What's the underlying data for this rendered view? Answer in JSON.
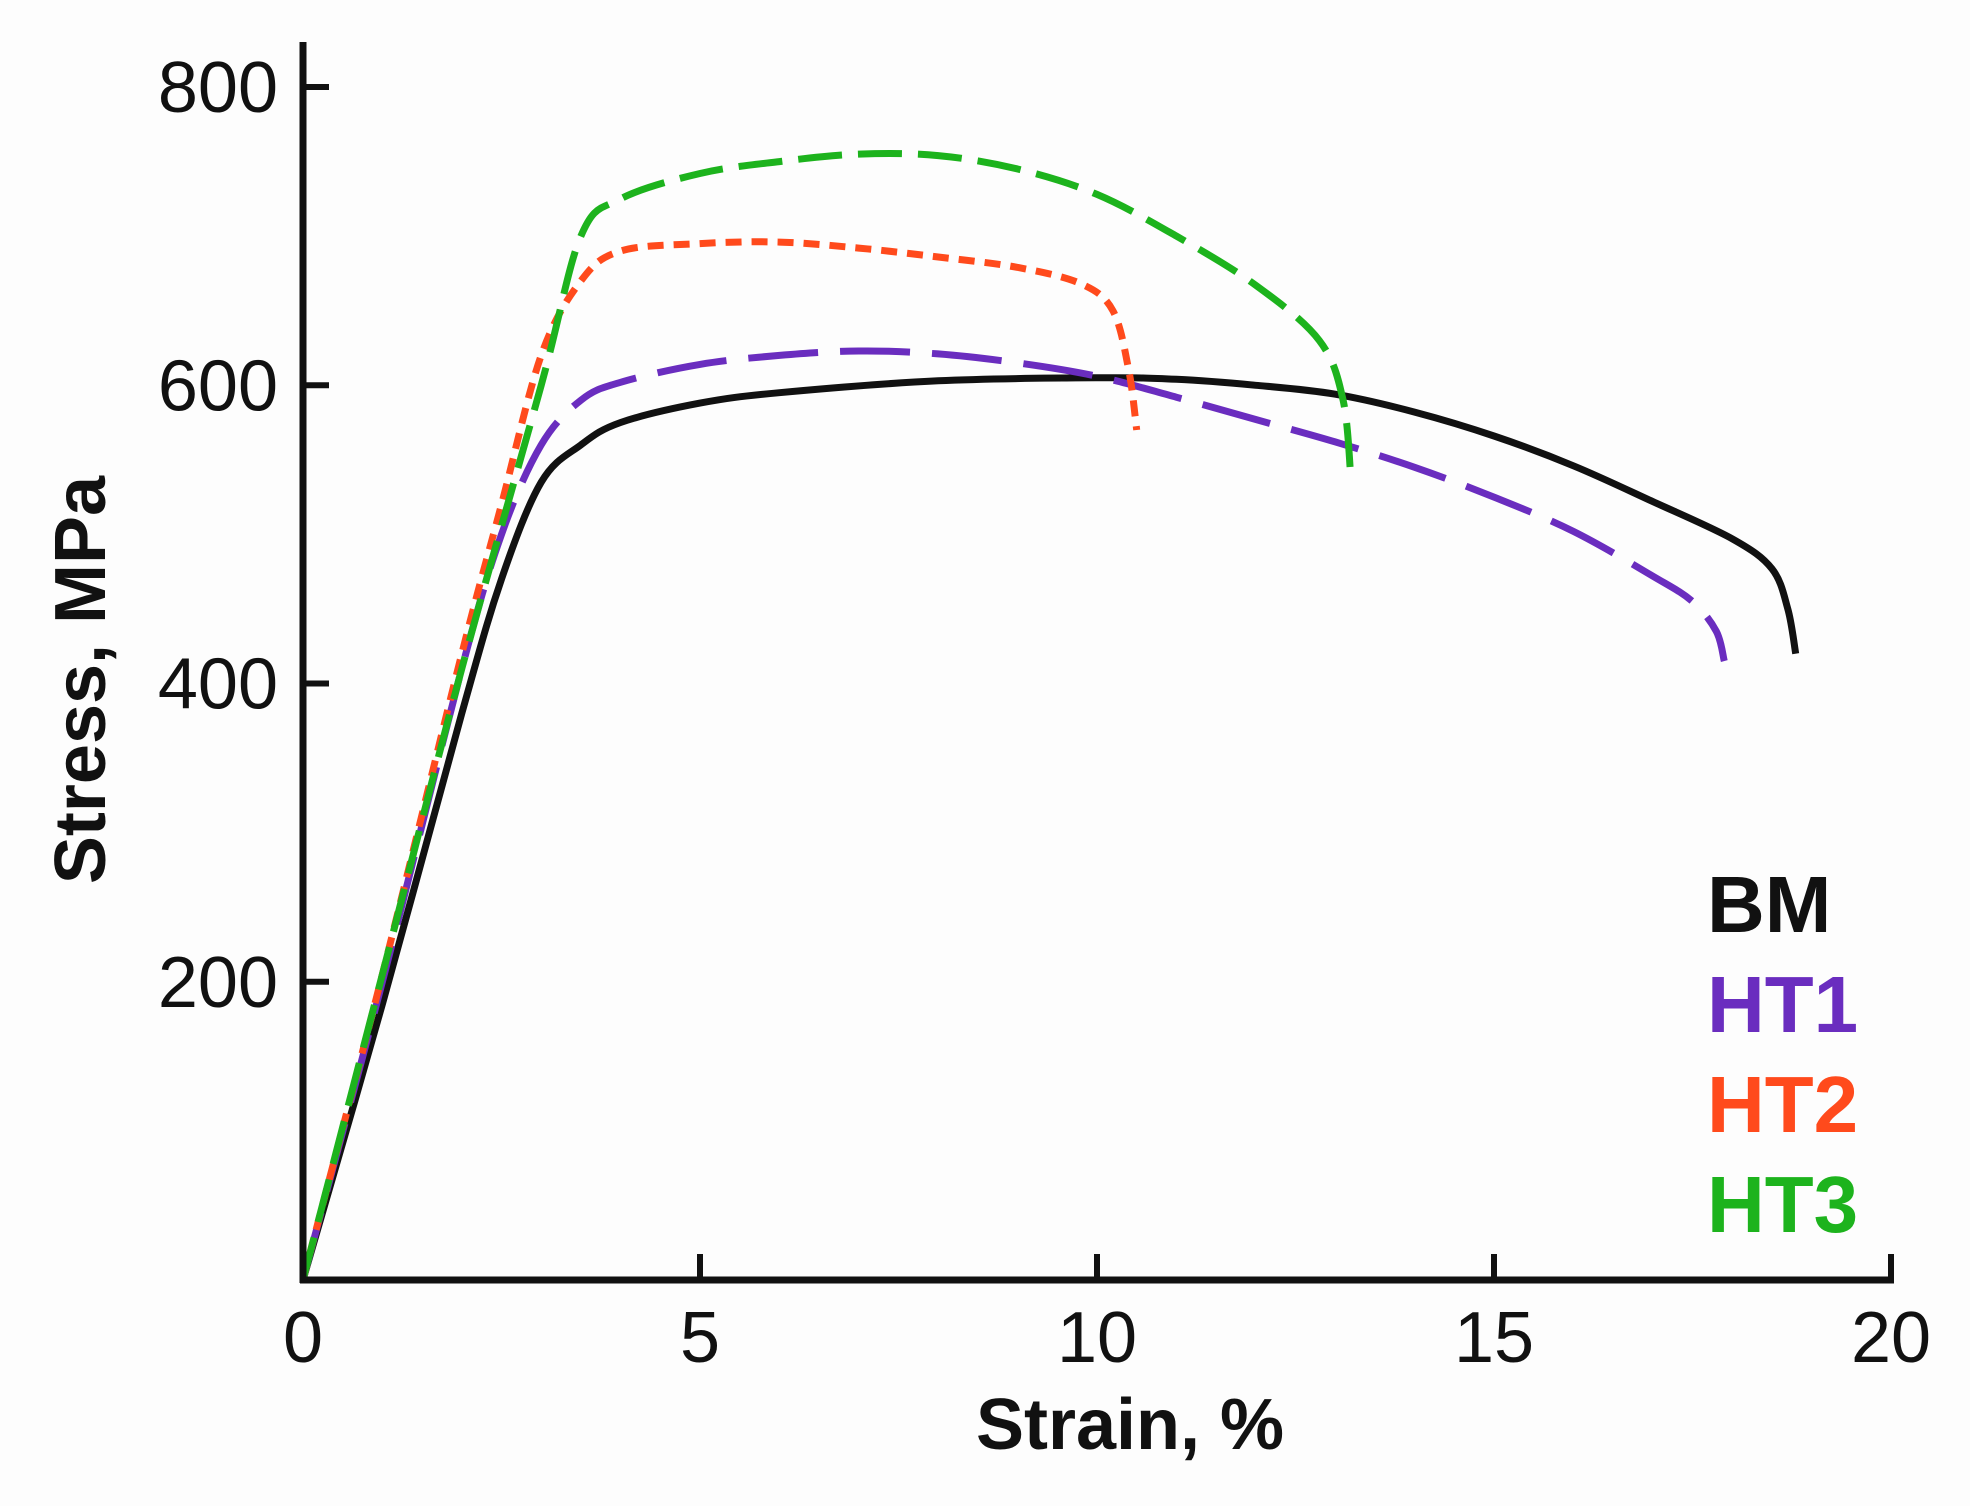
{
  "chart_data": {
    "type": "line",
    "title": "",
    "xlabel": "Strain, %",
    "ylabel": "Stress, MPa",
    "xlim": [
      0,
      20
    ],
    "ylim": [
      0,
      800
    ],
    "xticks": [
      0,
      5,
      10,
      15,
      20
    ],
    "xtick_labels": [
      "0",
      "5",
      "10",
      "15",
      "20"
    ],
    "yticks": [
      200,
      400,
      600,
      800
    ],
    "ytick_labels": [
      "200",
      "400",
      "600",
      "800"
    ],
    "grid": false,
    "legend_position": "bottom-right",
    "series": [
      {
        "name": "BM",
        "color": "#111111",
        "style": "solid",
        "points": [
          [
            0,
            0
          ],
          [
            1,
            185
          ],
          [
            2,
            380
          ],
          [
            2.5,
            470
          ],
          [
            3,
            535
          ],
          [
            3.5,
            560
          ],
          [
            4,
            575
          ],
          [
            5,
            588
          ],
          [
            6,
            595
          ],
          [
            8,
            603
          ],
          [
            10,
            605
          ],
          [
            11,
            604
          ],
          [
            12,
            600
          ],
          [
            13,
            594
          ],
          [
            14,
            582
          ],
          [
            15,
            566
          ],
          [
            16,
            546
          ],
          [
            17,
            522
          ],
          [
            18,
            497
          ],
          [
            18.5,
            477
          ],
          [
            18.7,
            450
          ],
          [
            18.8,
            420
          ]
        ]
      },
      {
        "name": "HT1",
        "color": "#6a2dbf",
        "style": "long-dash",
        "points": [
          [
            0,
            0
          ],
          [
            1,
            200
          ],
          [
            2,
            410
          ],
          [
            2.5,
            500
          ],
          [
            3,
            560
          ],
          [
            3.5,
            590
          ],
          [
            4,
            602
          ],
          [
            5,
            614
          ],
          [
            6,
            620
          ],
          [
            7,
            623
          ],
          [
            8,
            621
          ],
          [
            9,
            615
          ],
          [
            10,
            606
          ],
          [
            11,
            592
          ],
          [
            12,
            577
          ],
          [
            13,
            562
          ],
          [
            14,
            545
          ],
          [
            15,
            525
          ],
          [
            16,
            502
          ],
          [
            17,
            472
          ],
          [
            17.5,
            455
          ],
          [
            17.8,
            435
          ],
          [
            17.9,
            415
          ]
        ]
      },
      {
        "name": "HT2",
        "color": "#ff4a1c",
        "style": "short-dash",
        "points": [
          [
            0,
            0
          ],
          [
            1,
            205
          ],
          [
            2,
            420
          ],
          [
            2.5,
            520
          ],
          [
            3,
            620
          ],
          [
            3.5,
            670
          ],
          [
            4,
            690
          ],
          [
            5,
            695
          ],
          [
            6,
            696
          ],
          [
            7,
            692
          ],
          [
            8,
            686
          ],
          [
            9,
            679
          ],
          [
            9.8,
            668
          ],
          [
            10.2,
            650
          ],
          [
            10.4,
            610
          ],
          [
            10.5,
            570
          ]
        ]
      },
      {
        "name": "HT3",
        "color": "#1db31d",
        "style": "dash",
        "points": [
          [
            0,
            0
          ],
          [
            1,
            205
          ],
          [
            2,
            410
          ],
          [
            3,
            600
          ],
          [
            3.5,
            700
          ],
          [
            4,
            725
          ],
          [
            5,
            742
          ],
          [
            6,
            750
          ],
          [
            7,
            755
          ],
          [
            8,
            754
          ],
          [
            9,
            745
          ],
          [
            10,
            728
          ],
          [
            11,
            700
          ],
          [
            12,
            667
          ],
          [
            12.8,
            630
          ],
          [
            13.1,
            590
          ],
          [
            13.2,
            535
          ]
        ]
      }
    ]
  }
}
